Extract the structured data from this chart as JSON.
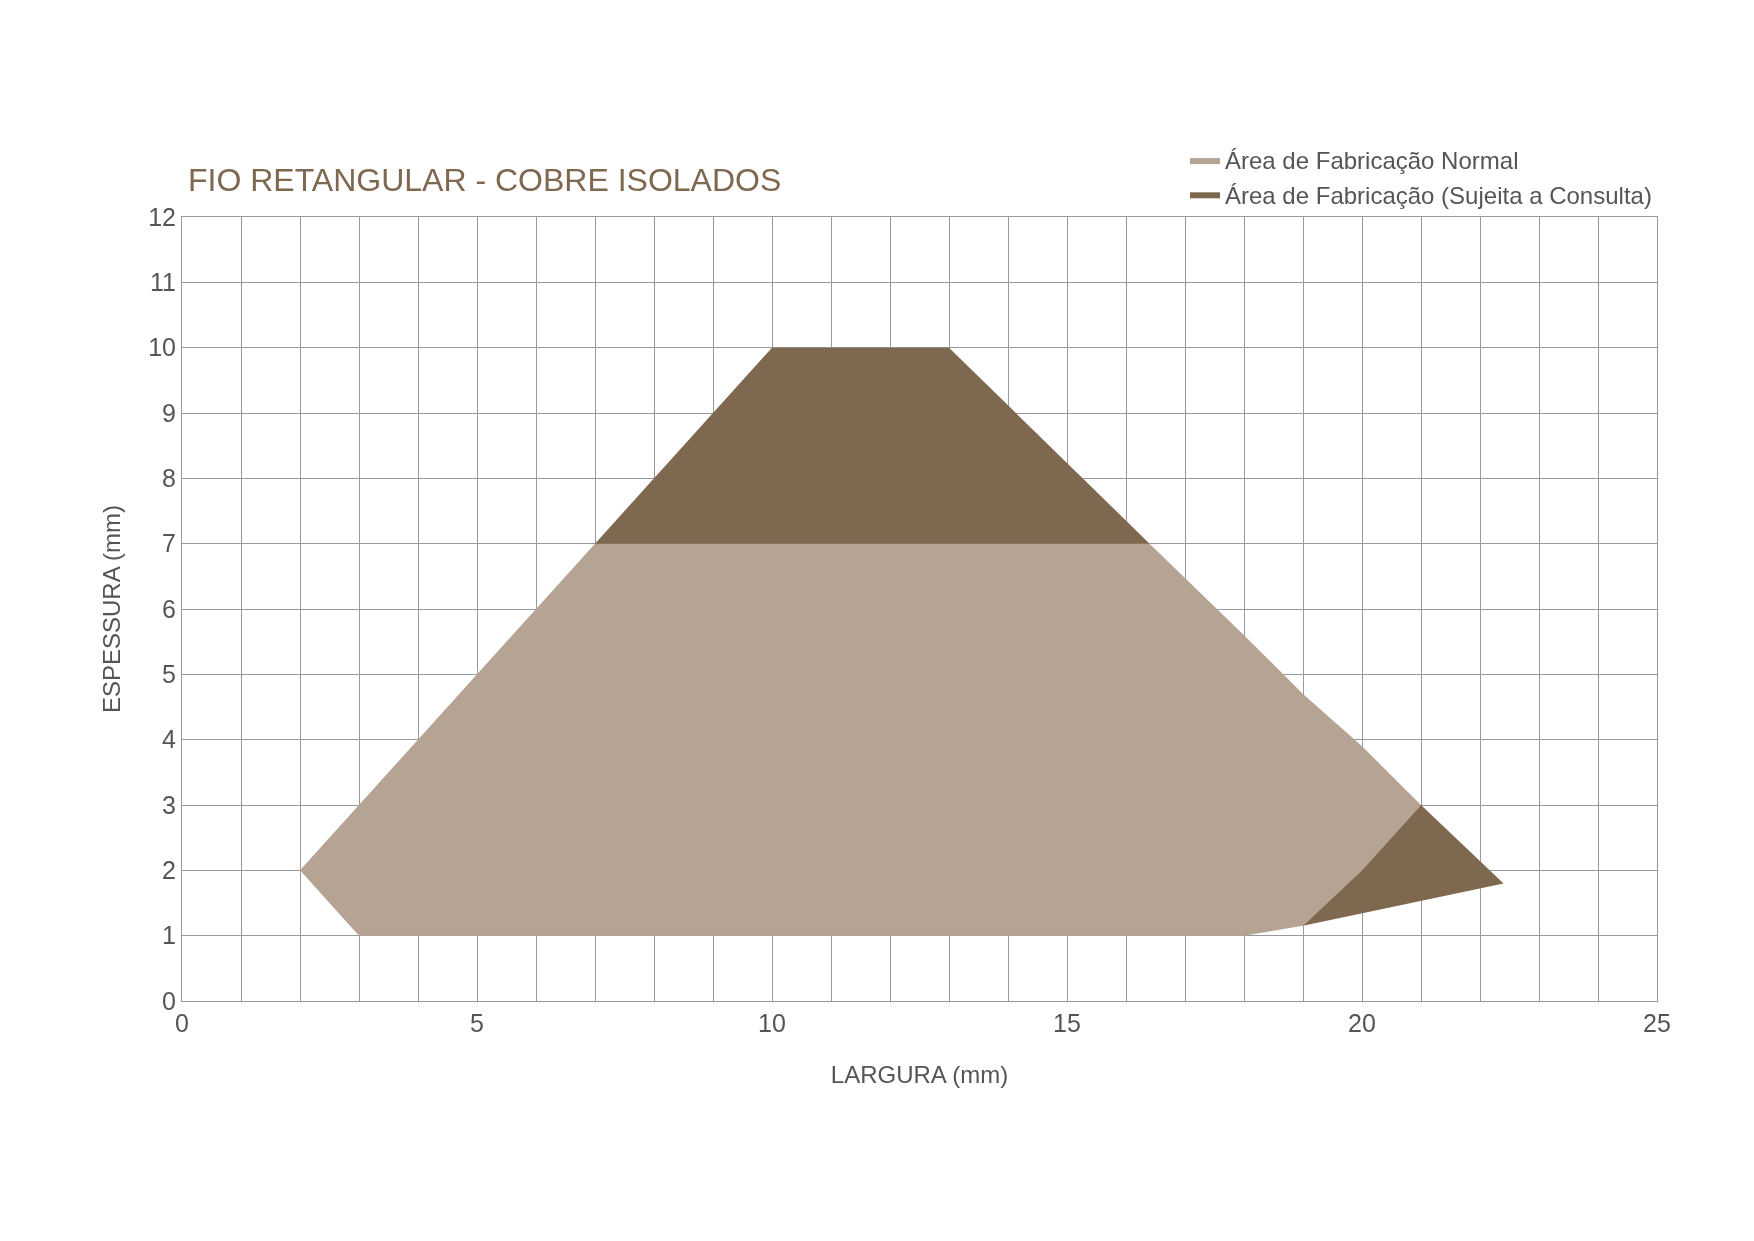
{
  "chart_data": {
    "type": "area",
    "title": "FIO RETANGULAR - COBRE ISOLADOS",
    "xlabel": "LARGURA (mm)",
    "ylabel": "ESPESSURA (mm)",
    "series": [
      {
        "name": "Área de Fabricação Normal",
        "color": "#b5a393",
        "x": [
          2,
          7,
          16.4,
          18,
          19,
          20,
          21,
          20,
          19,
          18,
          3,
          2
        ],
        "values": [
          2,
          7,
          7,
          5.6,
          4.7,
          3.9,
          3,
          2,
          1.15,
          1,
          1,
          2
        ]
      },
      {
        "name": "Área de Fabricação (Sujeita a Consulta)",
        "color": "#7f6850",
        "x": [
          7,
          10,
          13,
          16.4,
          7
        ],
        "values": [
          7,
          10,
          10,
          7,
          7
        ]
      },
      {
        "color": "#7f6850",
        "x": [
          19,
          20,
          21,
          22.4,
          19
        ],
        "values": [
          1.15,
          2,
          3,
          1.8,
          1.15
        ]
      }
    ],
    "xlim": [
      0,
      25
    ],
    "xticks": [
      0,
      {
        "value": 1,
        "label": null
      },
      {
        "value": 2,
        "label": null
      },
      {
        "value": 3,
        "label": null
      },
      {
        "value": 4,
        "label": null
      },
      5,
      {
        "value": 6,
        "label": null
      },
      {
        "value": 7,
        "label": null
      },
      {
        "value": 8,
        "label": null
      },
      {
        "value": 9,
        "label": null
      },
      10,
      {
        "value": 11,
        "label": null
      },
      {
        "value": 12,
        "label": null
      },
      {
        "value": 13,
        "label": null
      },
      {
        "value": 14,
        "label": null
      },
      15,
      {
        "value": 16,
        "label": null
      },
      {
        "value": 17,
        "label": null
      },
      {
        "value": 18,
        "label": null
      },
      {
        "value": 19,
        "label": null
      },
      20,
      {
        "value": 21,
        "label": null
      },
      {
        "value": 22,
        "label": null
      },
      {
        "value": 23,
        "label": null
      },
      {
        "value": 24,
        "label": null
      },
      25
    ],
    "ylim": [
      0,
      12
    ],
    "yticks": [
      0,
      1,
      2,
      3,
      4,
      5,
      6,
      7,
      8,
      9,
      10,
      11,
      12
    ],
    "grid": true,
    "legend": "top right"
  }
}
